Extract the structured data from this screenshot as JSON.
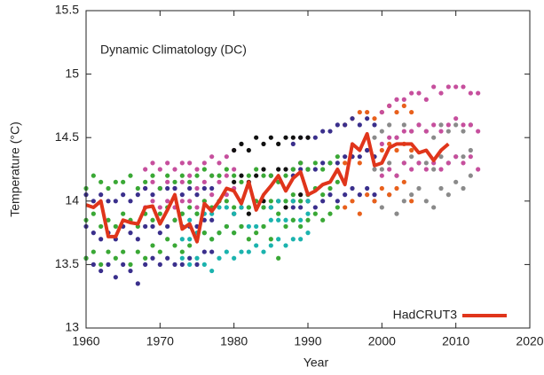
{
  "chart_data": {
    "type": "scatter",
    "title": "Dynamic Climatology (DC)",
    "x_label": "Year",
    "y_label": "Temperature (°C)",
    "xlim": [
      1960,
      2020
    ],
    "xticks": [
      1960,
      1970,
      1980,
      1990,
      2000,
      2010,
      2020
    ],
    "ylim": [
      13,
      15.5
    ],
    "yticks": [
      13,
      13.5,
      14,
      14.5,
      15,
      15.5
    ],
    "legend": "lower right",
    "series": [
      {
        "color": "#8a8a8a",
        "x": [
          1999,
          2000,
          2001,
          2002,
          2003,
          2004,
          2005,
          2006,
          2007,
          2008,
          2009,
          2010,
          2011,
          2012
        ],
        "values": [
          [
            14.0,
            14.25,
            14.5
          ],
          [
            13.95,
            14.25,
            14.55
          ],
          [
            14.05,
            14.3,
            14.6
          ],
          [
            13.9,
            14.2,
            14.5
          ],
          [
            14.0,
            14.3,
            14.6
          ],
          [
            14.05,
            14.35,
            14.55
          ],
          [
            14.1,
            14.3,
            14.6
          ],
          [
            14.0,
            14.3,
            14.55
          ],
          [
            13.95,
            14.25,
            14.5
          ],
          [
            14.1,
            14.35,
            14.6
          ],
          [
            14.05,
            14.3,
            14.55
          ],
          [
            14.15,
            14.35,
            14.6
          ],
          [
            14.1,
            14.35,
            14.55
          ],
          [
            14.2,
            14.4,
            14.6
          ]
        ]
      },
      {
        "color": "#e8601c",
        "x": [
          1995,
          1996,
          1997,
          1998,
          1999,
          2000,
          2001,
          2002,
          2003,
          2004
        ],
        "values": [
          [
            13.95,
            14.3,
            14.6
          ],
          [
            14.0,
            14.35,
            14.65
          ],
          [
            13.9,
            14.3,
            14.7
          ],
          [
            14.05,
            14.4,
            14.7
          ],
          [
            14.0,
            14.35,
            14.65
          ],
          [
            14.1,
            14.4,
            14.7
          ],
          [
            14.05,
            14.45,
            14.75
          ],
          [
            14.1,
            14.4,
            14.7
          ],
          [
            14.15,
            14.45,
            14.75
          ],
          [
            14.0,
            14.4,
            14.7
          ]
        ]
      },
      {
        "color": "#c64f9d",
        "x": [
          1968,
          1969,
          1970,
          1971,
          1972,
          1973,
          1974,
          1975,
          1976,
          1977,
          1978,
          1979,
          1980,
          2000,
          2001,
          2002,
          2003,
          2004,
          2005,
          2006,
          2007,
          2008,
          2009,
          2010,
          2011,
          2012,
          2013
        ],
        "values": [
          [
            13.95,
            14.1,
            14.25
          ],
          [
            14.0,
            14.15,
            14.3
          ],
          [
            13.95,
            14.1,
            14.25
          ],
          [
            14.0,
            14.15,
            14.3
          ],
          [
            13.95,
            14.1,
            14.25
          ],
          [
            14.0,
            14.15,
            14.3
          ],
          [
            14.0,
            14.2,
            14.3
          ],
          [
            13.95,
            14.1,
            14.25
          ],
          [
            14.0,
            14.15,
            14.3
          ],
          [
            14.05,
            14.2,
            14.35
          ],
          [
            14.0,
            14.15,
            14.3
          ],
          [
            14.05,
            14.2,
            14.35
          ],
          [
            14.1,
            14.25,
            14.4
          ],
          [
            14.2,
            14.45,
            14.7
          ],
          [
            14.25,
            14.5,
            14.75
          ],
          [
            14.2,
            14.5,
            14.8
          ],
          [
            14.3,
            14.55,
            14.8
          ],
          [
            14.25,
            14.55,
            14.85
          ],
          [
            14.3,
            14.6,
            14.85
          ],
          [
            14.25,
            14.55,
            14.8
          ],
          [
            14.3,
            14.6,
            14.9
          ],
          [
            14.25,
            14.55,
            14.85
          ],
          [
            14.3,
            14.6,
            14.9
          ],
          [
            14.35,
            14.65,
            14.9
          ],
          [
            14.3,
            14.6,
            14.9
          ],
          [
            14.35,
            14.6,
            14.85
          ],
          [
            14.25,
            14.55,
            14.85
          ]
        ]
      },
      {
        "color": "#3a2f8c",
        "x": [
          1960,
          1961,
          1962,
          1963,
          1964,
          1965,
          1966,
          1967,
          1968,
          1969,
          1970,
          1971,
          1972,
          1973,
          1974,
          1975,
          1976,
          1977,
          1988,
          1989,
          1990,
          1991,
          1992,
          1993,
          1994,
          1995,
          1996,
          1997,
          1998,
          1999
        ],
        "values": [
          [
            13.55,
            13.8,
            14.05
          ],
          [
            13.5,
            13.75,
            14.0
          ],
          [
            13.45,
            13.7,
            14.05
          ],
          [
            13.5,
            13.75,
            14.0
          ],
          [
            13.4,
            13.7,
            14.0
          ],
          [
            13.5,
            13.8,
            14.05
          ],
          [
            13.45,
            13.75,
            14.0
          ],
          [
            13.35,
            13.7,
            14.05
          ],
          [
            13.5,
            13.8,
            14.1
          ],
          [
            13.55,
            13.8,
            14.05
          ],
          [
            13.5,
            13.75,
            14.1
          ],
          [
            13.55,
            13.8,
            14.1
          ],
          [
            13.5,
            13.85,
            14.1
          ],
          [
            13.5,
            13.8,
            14.05
          ],
          [
            13.55,
            13.8,
            14.1
          ],
          [
            13.5,
            13.8,
            14.05
          ],
          [
            13.6,
            13.85,
            14.1
          ],
          [
            13.6,
            13.85,
            14.1
          ],
          [
            13.95,
            14.2,
            14.45
          ],
          [
            13.95,
            14.25,
            14.5
          ],
          [
            14.0,
            14.25,
            14.5
          ],
          [
            13.95,
            14.25,
            14.5
          ],
          [
            14.0,
            14.3,
            14.55
          ],
          [
            14.05,
            14.3,
            14.55
          ],
          [
            14.0,
            14.3,
            14.6
          ],
          [
            14.05,
            14.35,
            14.6
          ],
          [
            14.1,
            14.35,
            14.65
          ],
          [
            14.05,
            14.35,
            14.6
          ],
          [
            14.1,
            14.4,
            14.65
          ],
          [
            14.05,
            14.35,
            14.6
          ]
        ]
      },
      {
        "color": "#111111",
        "x": [
          1980,
          1981,
          1982,
          1983,
          1984,
          1985,
          1986,
          1987,
          1988,
          1989,
          1990
        ],
        "values": [
          [
            13.9,
            14.15,
            14.4
          ],
          [
            13.95,
            14.2,
            14.45
          ],
          [
            13.9,
            14.15,
            14.4
          ],
          [
            13.95,
            14.2,
            14.5
          ],
          [
            14.0,
            14.25,
            14.45
          ],
          [
            13.95,
            14.2,
            14.5
          ],
          [
            14.0,
            14.25,
            14.45
          ],
          [
            13.95,
            14.25,
            14.5
          ],
          [
            14.0,
            14.25,
            14.5
          ],
          [
            14.05,
            14.3,
            14.5
          ],
          [
            14.0,
            14.25,
            14.5
          ]
        ]
      },
      {
        "color": "#1bb3ae",
        "x": [
          1973,
          1974,
          1975,
          1976,
          1977,
          1978,
          1979,
          1980,
          1981,
          1982,
          1983,
          1984,
          1985,
          1986,
          1987,
          1988,
          1989,
          1990
        ],
        "values": [
          [
            13.55,
            13.7,
            13.9
          ],
          [
            13.5,
            13.7,
            13.85
          ],
          [
            13.55,
            13.75,
            13.9
          ],
          [
            13.5,
            13.75,
            13.9
          ],
          [
            13.45,
            13.7,
            13.9
          ],
          [
            13.55,
            13.75,
            13.95
          ],
          [
            13.6,
            13.8,
            13.95
          ],
          [
            13.55,
            13.75,
            13.9
          ],
          [
            13.6,
            13.8,
            13.95
          ],
          [
            13.6,
            13.8,
            13.95
          ],
          [
            13.65,
            13.8,
            13.95
          ],
          [
            13.6,
            13.8,
            13.95
          ],
          [
            13.65,
            13.85,
            13.95
          ],
          [
            13.7,
            13.85,
            14.0
          ],
          [
            13.65,
            13.85,
            14.0
          ],
          [
            13.7,
            13.85,
            14.0
          ],
          [
            13.7,
            13.85,
            14.0
          ],
          [
            13.75,
            13.9,
            14.0
          ]
        ]
      },
      {
        "color": "#3aa835",
        "x": [
          1960,
          1961,
          1962,
          1963,
          1964,
          1965,
          1966,
          1967,
          1968,
          1969,
          1970,
          1971,
          1972,
          1973,
          1974,
          1975,
          1976,
          1977,
          1978,
          1979,
          1980,
          1981,
          1982,
          1983,
          1984,
          1985,
          1986,
          1987,
          1988,
          1989,
          1990,
          1991,
          1992,
          1993,
          1994
        ],
        "values": [
          [
            13.55,
            13.85,
            14.1
          ],
          [
            13.6,
            13.9,
            14.2
          ],
          [
            13.5,
            13.8,
            14.15
          ],
          [
            13.6,
            13.85,
            14.1
          ],
          [
            13.55,
            13.8,
            14.15
          ],
          [
            13.6,
            13.9,
            14.15
          ],
          [
            13.5,
            13.85,
            14.2
          ],
          [
            13.6,
            13.8,
            14.1
          ],
          [
            13.55,
            13.9,
            14.15
          ],
          [
            13.65,
            13.85,
            14.2
          ],
          [
            13.6,
            13.9,
            14.1
          ],
          [
            13.7,
            13.95,
            14.2
          ],
          [
            13.65,
            13.85,
            14.15
          ],
          [
            13.6,
            13.9,
            14.2
          ],
          [
            13.65,
            13.95,
            14.15
          ],
          [
            13.7,
            13.9,
            14.2
          ],
          [
            13.75,
            14.0,
            14.25
          ],
          [
            13.7,
            13.95,
            14.2
          ],
          [
            13.75,
            14.0,
            14.2
          ],
          [
            13.8,
            14.0,
            14.25
          ],
          [
            13.75,
            13.95,
            14.2
          ],
          [
            13.8,
            14.0,
            14.15
          ],
          [
            13.7,
            13.95,
            14.2
          ],
          [
            13.75,
            14.0,
            14.25
          ],
          [
            13.8,
            13.95,
            14.2
          ],
          [
            13.7,
            14.0,
            14.2
          ],
          [
            13.55,
            13.9,
            14.15
          ],
          [
            13.8,
            14.0,
            14.2
          ],
          [
            13.85,
            14.05,
            14.25
          ],
          [
            13.8,
            14.0,
            14.3
          ],
          [
            13.85,
            14.05,
            14.25
          ],
          [
            13.9,
            14.1,
            14.3
          ],
          [
            13.85,
            14.05,
            14.25
          ],
          [
            13.9,
            14.1,
            14.3
          ],
          [
            13.95,
            14.15,
            14.35
          ]
        ]
      },
      {
        "name": "HadCRUT3",
        "type": "line",
        "color": "#e0351b",
        "x": [
          1960,
          1961,
          1962,
          1963,
          1964,
          1965,
          1966,
          1967,
          1968,
          1969,
          1970,
          1971,
          1972,
          1973,
          1974,
          1975,
          1976,
          1977,
          1978,
          1979,
          1980,
          1981,
          1982,
          1983,
          1984,
          1985,
          1986,
          1987,
          1988,
          1989,
          1990,
          1991,
          1992,
          1993,
          1994,
          1995,
          1996,
          1997,
          1998,
          1999,
          2000,
          2001,
          2002,
          2003,
          2004,
          2005,
          2006,
          2007,
          2008,
          2009
        ],
        "values": [
          13.97,
          13.95,
          14.0,
          13.72,
          13.72,
          13.85,
          13.83,
          13.82,
          13.95,
          13.96,
          13.82,
          13.93,
          14.05,
          13.78,
          13.82,
          13.68,
          13.98,
          13.92,
          14.0,
          14.1,
          14.08,
          13.98,
          14.15,
          13.93,
          14.05,
          14.12,
          14.2,
          14.08,
          14.18,
          14.23,
          14.05,
          14.08,
          14.13,
          14.15,
          14.25,
          14.13,
          14.45,
          14.4,
          14.53,
          14.28,
          14.3,
          14.42,
          14.45,
          14.45,
          14.45,
          14.38,
          14.4,
          14.32,
          14.4,
          14.45
        ]
      }
    ]
  }
}
